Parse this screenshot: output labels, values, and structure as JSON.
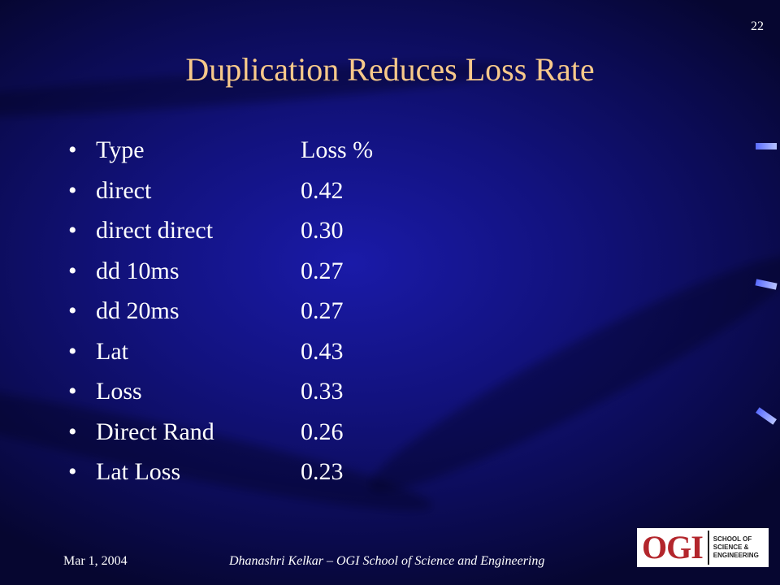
{
  "slide_number": "22",
  "title": "Duplication Reduces Loss Rate",
  "bullet_glyph": "•",
  "rows": [
    {
      "type": "Type",
      "loss": "Loss %"
    },
    {
      "type": "direct",
      "loss": "0.42"
    },
    {
      "type": "direct direct",
      "loss": "0.30"
    },
    {
      "type": "dd 10ms",
      "loss": "0.27"
    },
    {
      "type": "dd 20ms",
      "loss": "0.27"
    },
    {
      "type": "Lat",
      "loss": "0.43"
    },
    {
      "type": "Loss",
      "loss": "0.33"
    },
    {
      "type": "Direct Rand",
      "loss": "0.26"
    },
    {
      "type": "Lat Loss",
      "loss": "0.23"
    }
  ],
  "footer": {
    "date": "Mar 1, 2004",
    "credit": "Dhanashri Kelkar – OGI School of Science and Engineering"
  },
  "logo": {
    "mark": "OGI",
    "line1": "SCHOOL OF",
    "line2": "SCIENCE &",
    "line3": "ENGINEERING"
  },
  "colors": {
    "background": "#12127e",
    "title": "#f7c98a",
    "text": "#ffffff",
    "logo_red": "#b3262c"
  }
}
